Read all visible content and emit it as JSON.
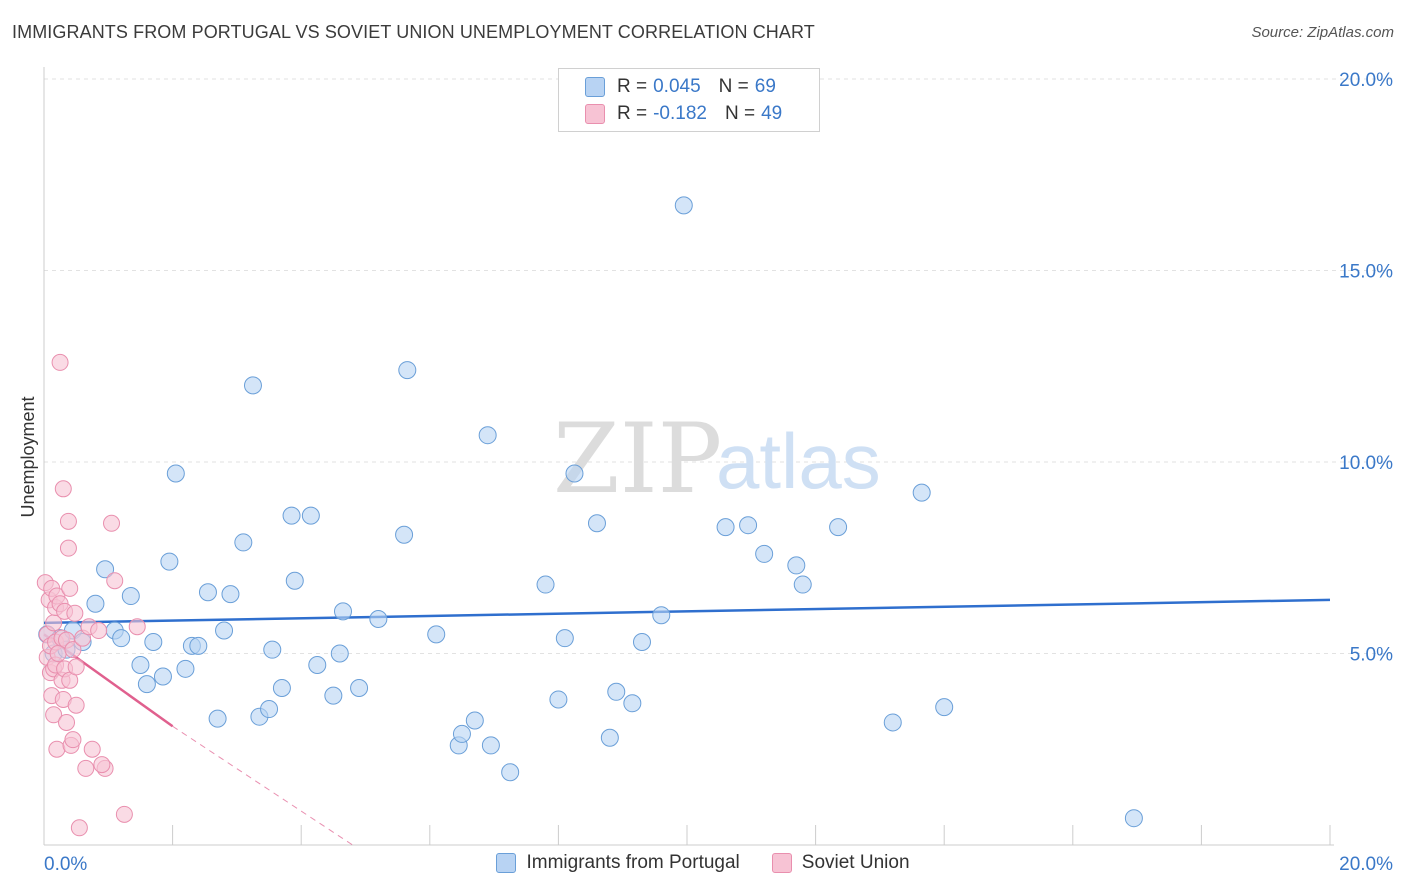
{
  "title": "IMMIGRANTS FROM PORTUGAL VS SOVIET UNION UNEMPLOYMENT CORRELATION CHART",
  "source": "Source: ZipAtlas.com",
  "watermark": {
    "zip": "ZIP",
    "atlas": "atlas"
  },
  "legend": {
    "rows": [
      {
        "r_label": "R =",
        "r_value": "0.045",
        "n_label": "N =",
        "n_value": "69"
      },
      {
        "r_label": "R =",
        "r_value": "-0.182",
        "n_label": "N =",
        "n_value": "49"
      }
    ]
  },
  "colors": {
    "blue_fill": "#b8d3f3",
    "blue_stroke": "#6a9fd8",
    "blue_line": "#2f6fce",
    "pink_fill": "#f7c3d4",
    "pink_stroke": "#e98fae",
    "pink_line": "#e0608e"
  },
  "chart_data": {
    "type": "scatter",
    "title": "IMMIGRANTS FROM PORTUGAL VS SOVIET UNION UNEMPLOYMENT CORRELATION CHART",
    "xlabel": "",
    "ylabel": "Unemployment",
    "xlim": [
      0,
      20
    ],
    "ylim": [
      0,
      20
    ],
    "x_tick_labels": [
      "0.0%",
      "20.0%"
    ],
    "y_ticks": [
      {
        "value": 5,
        "label": "5.0%"
      },
      {
        "value": 10,
        "label": "10.0%"
      },
      {
        "value": 15,
        "label": "15.0%"
      },
      {
        "value": 20,
        "label": "20.0%"
      }
    ],
    "grid": true,
    "series": [
      {
        "name": "Immigrants from Portugal",
        "trend": {
          "x": [
            0,
            20
          ],
          "y": [
            5.8,
            6.4
          ]
        },
        "points": [
          {
            "x": 0.05,
            "y": 5.5
          },
          {
            "x": 0.15,
            "y": 5.0
          },
          {
            "x": 0.25,
            "y": 5.4
          },
          {
            "x": 0.35,
            "y": 5.1
          },
          {
            "x": 0.45,
            "y": 5.6
          },
          {
            "x": 0.6,
            "y": 5.3
          },
          {
            "x": 0.8,
            "y": 6.3
          },
          {
            "x": 0.95,
            "y": 7.2
          },
          {
            "x": 1.1,
            "y": 5.6
          },
          {
            "x": 1.2,
            "y": 5.4
          },
          {
            "x": 1.35,
            "y": 6.5
          },
          {
            "x": 1.5,
            "y": 4.7
          },
          {
            "x": 1.6,
            "y": 4.2
          },
          {
            "x": 1.7,
            "y": 5.3
          },
          {
            "x": 1.85,
            "y": 4.4
          },
          {
            "x": 1.95,
            "y": 7.4
          },
          {
            "x": 2.05,
            "y": 9.7
          },
          {
            "x": 2.2,
            "y": 4.6
          },
          {
            "x": 2.3,
            "y": 5.2
          },
          {
            "x": 2.4,
            "y": 5.2
          },
          {
            "x": 2.55,
            "y": 6.6
          },
          {
            "x": 2.7,
            "y": 3.3
          },
          {
            "x": 2.8,
            "y": 5.6
          },
          {
            "x": 2.9,
            "y": 6.55
          },
          {
            "x": 3.1,
            "y": 7.9
          },
          {
            "x": 3.25,
            "y": 12.0
          },
          {
            "x": 3.35,
            "y": 3.35
          },
          {
            "x": 3.5,
            "y": 3.55
          },
          {
            "x": 3.55,
            "y": 5.1
          },
          {
            "x": 3.7,
            "y": 4.1
          },
          {
            "x": 3.85,
            "y": 8.6
          },
          {
            "x": 3.9,
            "y": 6.9
          },
          {
            "x": 4.15,
            "y": 8.6
          },
          {
            "x": 4.25,
            "y": 4.7
          },
          {
            "x": 4.5,
            "y": 3.9
          },
          {
            "x": 4.6,
            "y": 5.0
          },
          {
            "x": 4.65,
            "y": 6.1
          },
          {
            "x": 4.9,
            "y": 4.1
          },
          {
            "x": 5.2,
            "y": 5.9
          },
          {
            "x": 5.6,
            "y": 8.1
          },
          {
            "x": 5.65,
            "y": 12.4
          },
          {
            "x": 6.1,
            "y": 5.5
          },
          {
            "x": 6.45,
            "y": 2.6
          },
          {
            "x": 6.5,
            "y": 2.9
          },
          {
            "x": 6.7,
            "y": 3.25
          },
          {
            "x": 6.9,
            "y": 10.7
          },
          {
            "x": 6.95,
            "y": 2.6
          },
          {
            "x": 7.25,
            "y": 1.9
          },
          {
            "x": 7.8,
            "y": 6.8
          },
          {
            "x": 8.0,
            "y": 3.8
          },
          {
            "x": 8.1,
            "y": 5.4
          },
          {
            "x": 8.25,
            "y": 9.7
          },
          {
            "x": 8.6,
            "y": 8.4
          },
          {
            "x": 8.8,
            "y": 2.8
          },
          {
            "x": 8.9,
            "y": 4.0
          },
          {
            "x": 9.15,
            "y": 3.7
          },
          {
            "x": 9.3,
            "y": 5.3
          },
          {
            "x": 9.6,
            "y": 6.0
          },
          {
            "x": 9.95,
            "y": 16.7
          },
          {
            "x": 10.6,
            "y": 8.3
          },
          {
            "x": 10.95,
            "y": 8.35
          },
          {
            "x": 11.2,
            "y": 7.6
          },
          {
            "x": 11.7,
            "y": 7.3
          },
          {
            "x": 11.8,
            "y": 6.8
          },
          {
            "x": 12.35,
            "y": 8.3
          },
          {
            "x": 13.2,
            "y": 3.2
          },
          {
            "x": 13.65,
            "y": 9.2
          },
          {
            "x": 14.0,
            "y": 3.6
          },
          {
            "x": 16.95,
            "y": 0.7
          }
        ]
      },
      {
        "name": "Soviet Union",
        "trend": {
          "x": [
            0,
            2.0
          ],
          "y": [
            5.5,
            3.1
          ],
          "dashed_to": {
            "x": 4.8,
            "y": 0
          }
        },
        "points": [
          {
            "x": 0.02,
            "y": 6.85
          },
          {
            "x": 0.05,
            "y": 5.5
          },
          {
            "x": 0.05,
            "y": 4.9
          },
          {
            "x": 0.08,
            "y": 6.4
          },
          {
            "x": 0.1,
            "y": 5.2
          },
          {
            "x": 0.1,
            "y": 4.5
          },
          {
            "x": 0.12,
            "y": 3.9
          },
          {
            "x": 0.12,
            "y": 6.7
          },
          {
            "x": 0.15,
            "y": 5.8
          },
          {
            "x": 0.15,
            "y": 4.6
          },
          {
            "x": 0.15,
            "y": 3.4
          },
          {
            "x": 0.18,
            "y": 6.2
          },
          {
            "x": 0.18,
            "y": 5.3
          },
          {
            "x": 0.18,
            "y": 4.7
          },
          {
            "x": 0.2,
            "y": 2.5
          },
          {
            "x": 0.2,
            "y": 6.5
          },
          {
            "x": 0.22,
            "y": 5.0
          },
          {
            "x": 0.25,
            "y": 6.3
          },
          {
            "x": 0.25,
            "y": 12.6
          },
          {
            "x": 0.28,
            "y": 5.4
          },
          {
            "x": 0.28,
            "y": 4.3
          },
          {
            "x": 0.3,
            "y": 3.8
          },
          {
            "x": 0.3,
            "y": 9.3
          },
          {
            "x": 0.32,
            "y": 6.1
          },
          {
            "x": 0.32,
            "y": 4.6
          },
          {
            "x": 0.35,
            "y": 3.2
          },
          {
            "x": 0.35,
            "y": 5.35
          },
          {
            "x": 0.38,
            "y": 8.45
          },
          {
            "x": 0.38,
            "y": 7.75
          },
          {
            "x": 0.4,
            "y": 4.3
          },
          {
            "x": 0.4,
            "y": 6.7
          },
          {
            "x": 0.42,
            "y": 2.6
          },
          {
            "x": 0.45,
            "y": 5.1
          },
          {
            "x": 0.45,
            "y": 2.75
          },
          {
            "x": 0.48,
            "y": 6.05
          },
          {
            "x": 0.5,
            "y": 4.65
          },
          {
            "x": 0.5,
            "y": 3.65
          },
          {
            "x": 0.55,
            "y": 0.45
          },
          {
            "x": 0.6,
            "y": 5.4
          },
          {
            "x": 0.65,
            "y": 2.0
          },
          {
            "x": 0.7,
            "y": 5.7
          },
          {
            "x": 0.75,
            "y": 2.5
          },
          {
            "x": 0.85,
            "y": 5.6
          },
          {
            "x": 0.95,
            "y": 2.0
          },
          {
            "x": 1.05,
            "y": 8.4
          },
          {
            "x": 1.1,
            "y": 6.9
          },
          {
            "x": 1.25,
            "y": 0.8
          },
          {
            "x": 1.45,
            "y": 5.7
          },
          {
            "x": 0.9,
            "y": 2.1
          }
        ]
      }
    ]
  },
  "bottom_legend": [
    "Immigrants from Portugal",
    "Soviet Union"
  ]
}
